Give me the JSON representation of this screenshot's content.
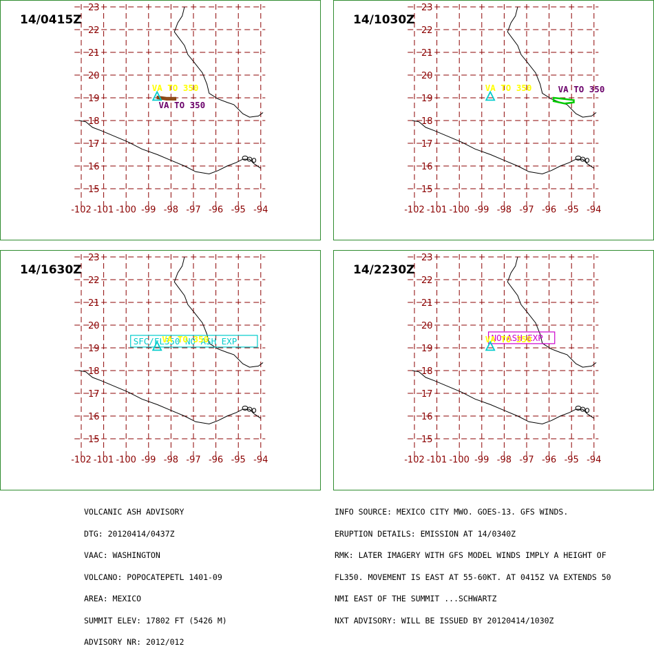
{
  "grid": {
    "lat_labels": [
      "23",
      "22",
      "21",
      "20",
      "19",
      "18",
      "17",
      "16",
      "15"
    ],
    "lon_labels": [
      "-102",
      "-101",
      "-100",
      "-99",
      "-98",
      "-97",
      "-96",
      "-95",
      "-94"
    ]
  },
  "colors": {
    "frame": "#2e8b2e",
    "grid": "#8b0000",
    "coast": "#000000",
    "volcano": "#00cccc",
    "label_yellow": "#ffff00",
    "label_purple": "#6a006a",
    "plume_brown": "#8b4513",
    "plume_green": "#00cc00",
    "box_cyan": "#00cccc",
    "box_magenta": "#cc00cc"
  },
  "panels": [
    {
      "time": "14/0415Z",
      "labels": [
        {
          "text": "VA TO 350",
          "color": "#ffff00",
          "lon": -98.85,
          "lat": 19.3
        },
        {
          "text": "VA TO 350",
          "color": "#6a006a",
          "lon": -98.55,
          "lat": 18.55
        }
      ],
      "plume": {
        "color": "#8b4513",
        "points": [
          [
            -98.6,
            19.05
          ],
          [
            -98.2,
            19.0
          ],
          [
            -97.8,
            19.0
          ],
          [
            -97.8,
            18.92
          ],
          [
            -98.2,
            18.92
          ],
          [
            -98.6,
            18.98
          ]
        ]
      },
      "boxes": []
    },
    {
      "time": "14/1030Z",
      "labels": [
        {
          "text": "VA TO 350",
          "color": "#ffff00",
          "lon": -98.85,
          "lat": 19.3
        },
        {
          "text": "VA TO 350",
          "color": "#6a006a",
          "lon": -95.6,
          "lat": 19.25
        }
      ],
      "plume": {
        "color": "#00cc00",
        "points": [
          [
            -95.8,
            19.0
          ],
          [
            -95.3,
            18.95
          ],
          [
            -94.9,
            18.9
          ],
          [
            -94.9,
            18.8
          ],
          [
            -95.3,
            18.75
          ],
          [
            -95.8,
            18.85
          ]
        ]
      },
      "boxes": []
    },
    {
      "time": "14/1630Z",
      "labels": [
        {
          "text": "VA TO 350",
          "color": "#ffff00",
          "lon": -98.4,
          "lat": 19.25
        }
      ],
      "plume": null,
      "boxes": [
        {
          "text": "SFC/FL350  NO ASH EXP",
          "color": "#00cccc",
          "lon": -99.8,
          "lat": 19.55,
          "w_lon": 5.65
        }
      ]
    },
    {
      "time": "14/2230Z",
      "labels": [
        {
          "text": "VA TO 350",
          "color": "#ffff00",
          "lon": -98.85,
          "lat": 19.25
        }
      ],
      "plume": null,
      "boxes": [
        {
          "text": "NO ASH EXP",
          "color": "#cc00cc",
          "lon": -98.7,
          "lat": 19.7,
          "w_lon": 2.95
        }
      ]
    }
  ],
  "advisory_left": [
    "VOLCANIC ASH ADVISORY",
    "DTG: 20120414/0437Z",
    "VAAC: WASHINGTON",
    "VOLCANO: POPOCATEPETL 1401-09",
    "AREA: MEXICO",
    "SUMMIT ELEV: 17802 FT (5426 M)",
    "ADVISORY NR: 2012/012"
  ],
  "advisory_right": [
    "INFO SOURCE: MEXICO CITY MWO. GOES-13. GFS WINDS.",
    "ERUPTION DETAILS: EMISSION AT 14/0340Z",
    "RMK: LATER IMAGERY WITH GFS MODEL WINDS IMPLY A HEIGHT OF",
    "FL350. MOVEMENT IS EAST AT 55-60KT. AT 0415Z VA EXTENDS 50",
    "NMI EAST OF THE SUMMIT ...SCHWARTZ",
    "NXT ADVISORY: WILL BE ISSUED BY 20120414/1030Z"
  ]
}
